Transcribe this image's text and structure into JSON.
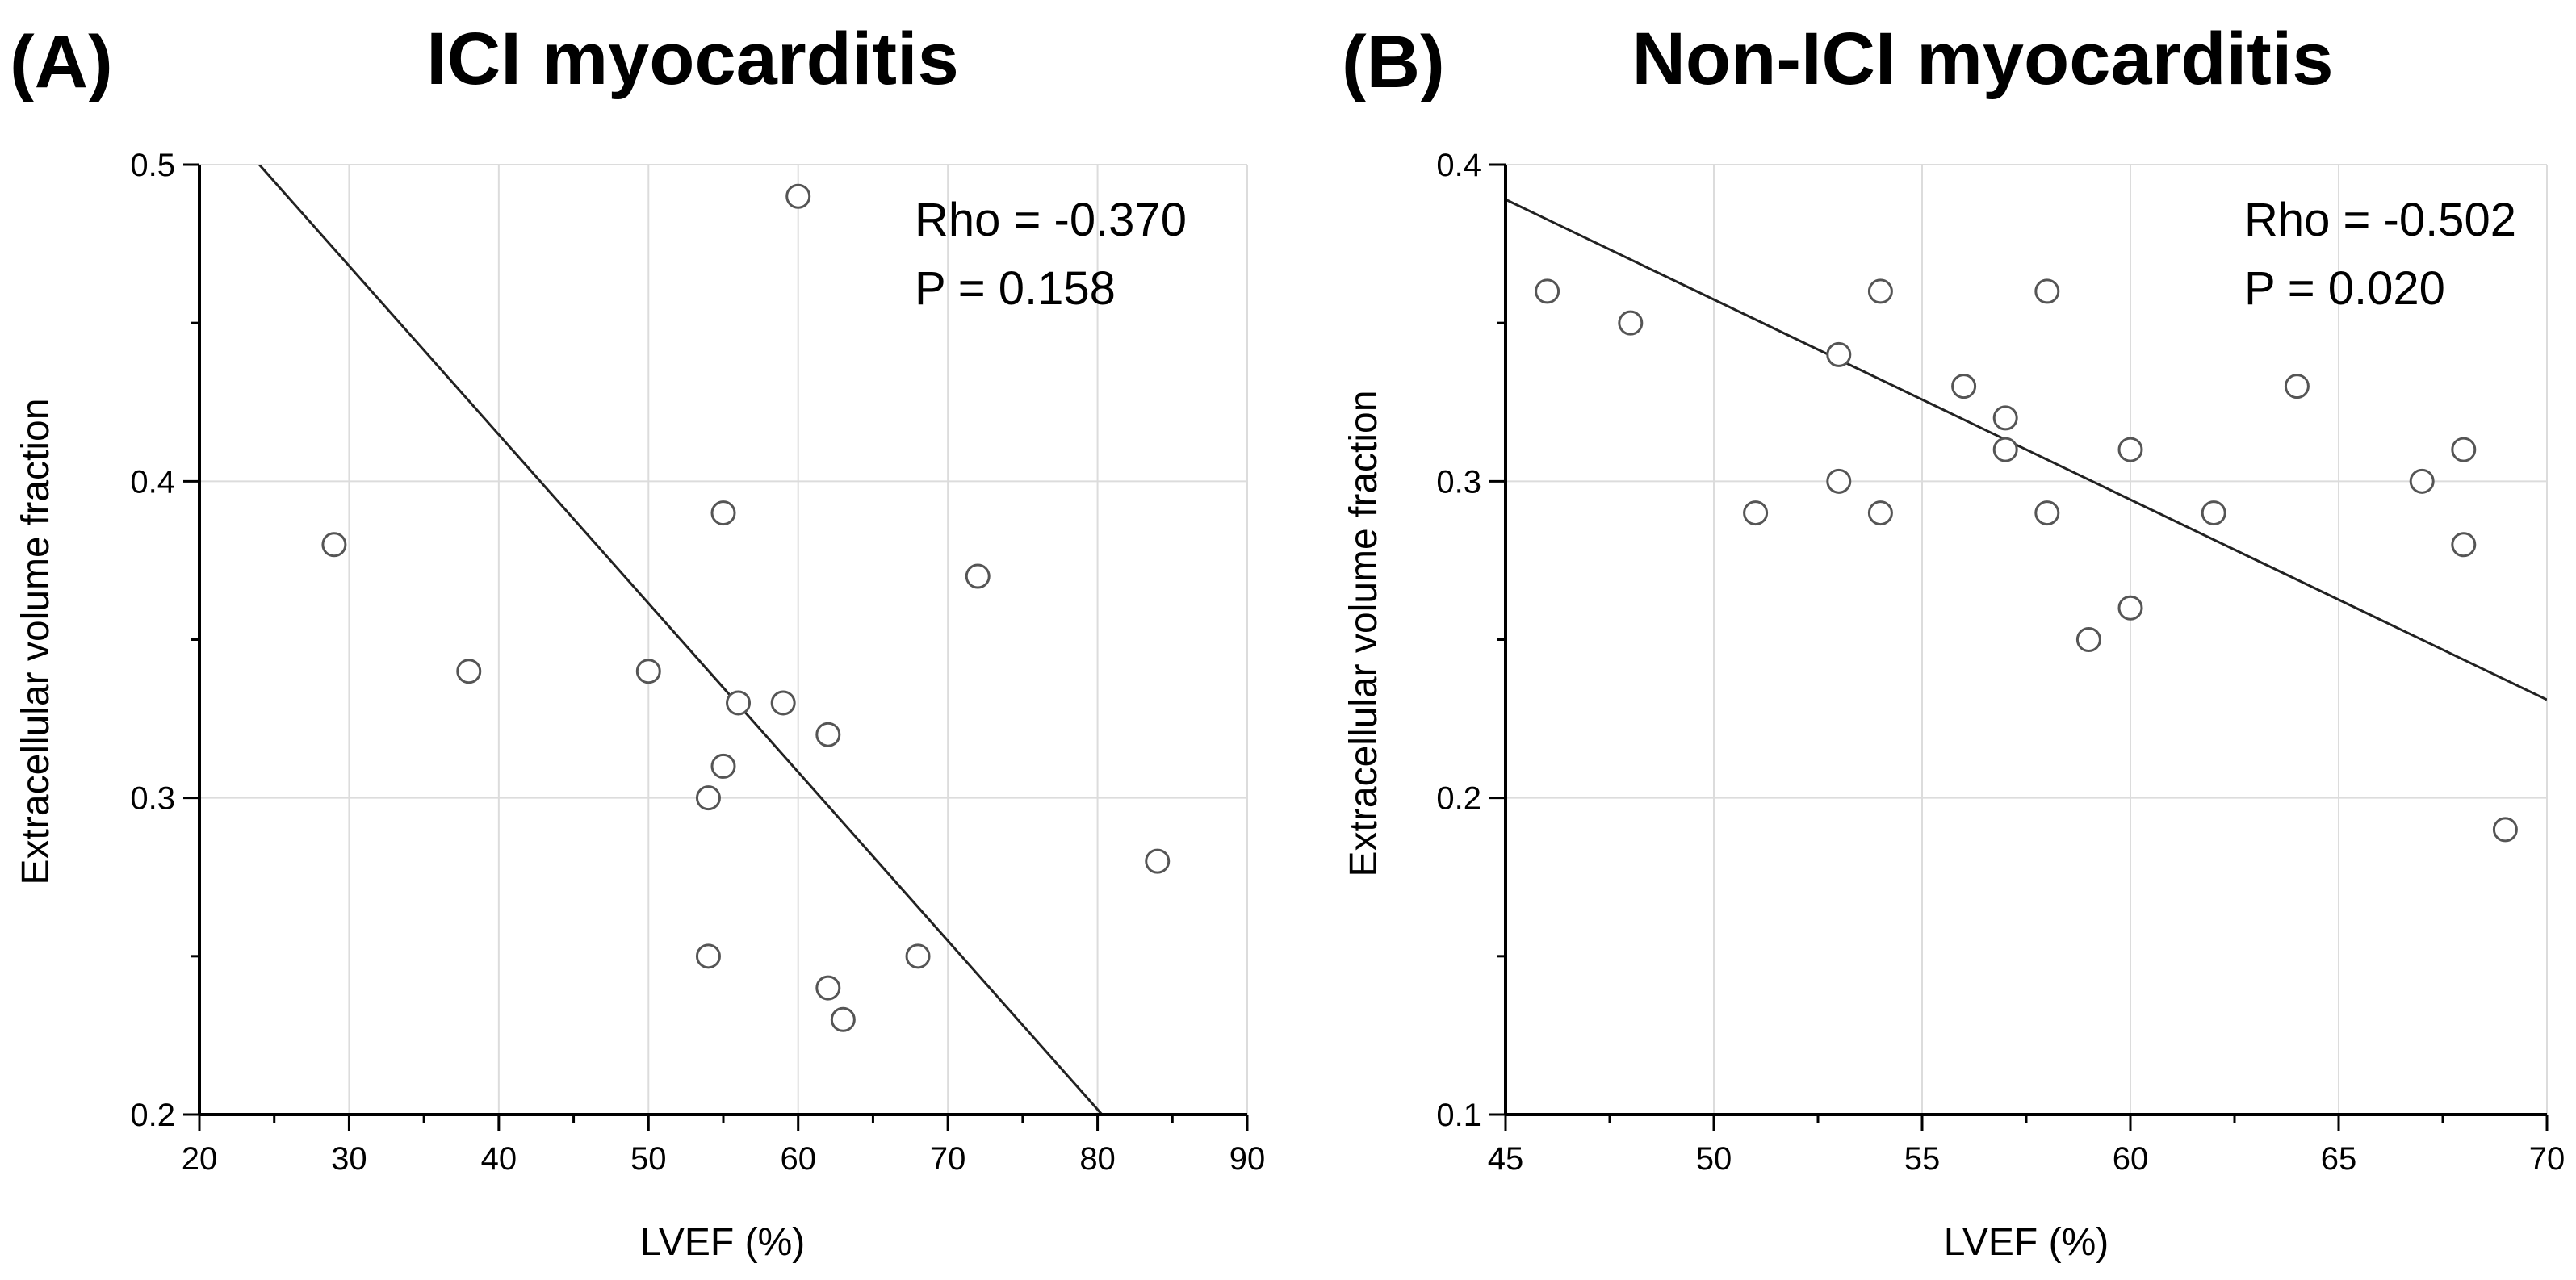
{
  "chart_data": [
    {
      "type": "scatter",
      "panel_label": "(A)",
      "title": "ICI myocarditis",
      "xlabel": "LVEF (%)",
      "ylabel": "Extracellular volume fraction",
      "xlim": [
        20,
        90
      ],
      "ylim": [
        0.2,
        0.5
      ],
      "x_ticks": [
        "20",
        "30",
        "40",
        "50",
        "60",
        "70",
        "80",
        "90"
      ],
      "y_ticks": [
        "0.2",
        "0.3",
        "0.4",
        "0.5"
      ],
      "x_tick_values": [
        20,
        30,
        40,
        50,
        60,
        70,
        80,
        90
      ],
      "y_tick_values": [
        0.2,
        0.3,
        0.4,
        0.5
      ],
      "y_minor_values": [
        0.25,
        0.35,
        0.45
      ],
      "grid": true,
      "annotation": {
        "rho": "Rho = -0.370",
        "p": "P =  0.158"
      },
      "fit_line": [
        [
          24,
          0.5
        ],
        [
          80.3,
          0.2
        ]
      ],
      "points": [
        {
          "x": 29,
          "y": 0.38
        },
        {
          "x": 38,
          "y": 0.34
        },
        {
          "x": 50,
          "y": 0.34
        },
        {
          "x": 54,
          "y": 0.3
        },
        {
          "x": 54,
          "y": 0.25
        },
        {
          "x": 55,
          "y": 0.39
        },
        {
          "x": 55,
          "y": 0.31
        },
        {
          "x": 56,
          "y": 0.33
        },
        {
          "x": 59,
          "y": 0.33
        },
        {
          "x": 60,
          "y": 0.49
        },
        {
          "x": 62,
          "y": 0.32
        },
        {
          "x": 62,
          "y": 0.24
        },
        {
          "x": 63,
          "y": 0.23
        },
        {
          "x": 68,
          "y": 0.25
        },
        {
          "x": 72,
          "y": 0.37
        },
        {
          "x": 84,
          "y": 0.28
        }
      ]
    },
    {
      "type": "scatter",
      "panel_label": "(B)",
      "title": "Non-ICI myocarditis",
      "xlabel": "LVEF (%)",
      "ylabel": "Extracellular volume fraction",
      "xlim": [
        45,
        70
      ],
      "ylim": [
        0.1,
        0.4
      ],
      "x_ticks": [
        "45",
        "50",
        "55",
        "60",
        "65",
        "70"
      ],
      "y_ticks": [
        "0.1",
        "0.2",
        "0.3",
        "0.4"
      ],
      "x_tick_values": [
        45,
        50,
        55,
        60,
        65,
        70
      ],
      "y_tick_values": [
        0.1,
        0.2,
        0.3,
        0.4
      ],
      "y_minor_values": [
        0.15,
        0.25,
        0.35
      ],
      "grid": true,
      "annotation": {
        "rho": "Rho = -0.502",
        "p": "P =  0.020"
      },
      "fit_line": [
        [
          45,
          0.389
        ],
        [
          70,
          0.231
        ]
      ],
      "points": [
        {
          "x": 46,
          "y": 0.36
        },
        {
          "x": 48,
          "y": 0.35
        },
        {
          "x": 51,
          "y": 0.29
        },
        {
          "x": 53,
          "y": 0.34
        },
        {
          "x": 53,
          "y": 0.3
        },
        {
          "x": 54,
          "y": 0.36
        },
        {
          "x": 54,
          "y": 0.29
        },
        {
          "x": 56,
          "y": 0.33
        },
        {
          "x": 57,
          "y": 0.32
        },
        {
          "x": 57,
          "y": 0.31
        },
        {
          "x": 58,
          "y": 0.36
        },
        {
          "x": 58,
          "y": 0.29
        },
        {
          "x": 59,
          "y": 0.25
        },
        {
          "x": 60,
          "y": 0.31
        },
        {
          "x": 60,
          "y": 0.26
        },
        {
          "x": 62,
          "y": 0.29
        },
        {
          "x": 64,
          "y": 0.33
        },
        {
          "x": 67,
          "y": 0.3
        },
        {
          "x": 68,
          "y": 0.31
        },
        {
          "x": 68,
          "y": 0.28
        },
        {
          "x": 69,
          "y": 0.19
        }
      ]
    }
  ]
}
